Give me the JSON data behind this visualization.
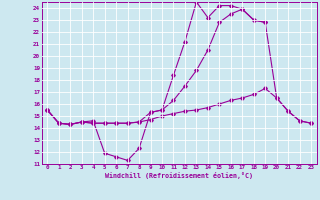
{
  "xlabel": "Windchill (Refroidissement éolien,°C)",
  "bg_color": "#cde8f0",
  "line_color": "#990099",
  "xlim": [
    -0.5,
    23.5
  ],
  "ylim": [
    11,
    24.5
  ],
  "yticks": [
    11,
    12,
    13,
    14,
    15,
    16,
    17,
    18,
    19,
    20,
    21,
    22,
    23,
    24
  ],
  "xticks": [
    0,
    1,
    2,
    3,
    4,
    5,
    6,
    7,
    8,
    9,
    10,
    11,
    12,
    13,
    14,
    15,
    16,
    17,
    18,
    19,
    20,
    21,
    22,
    23
  ],
  "series1_x": [
    0,
    1,
    2,
    3,
    4,
    5,
    6,
    7,
    8,
    9,
    10,
    11,
    12,
    13,
    14,
    15,
    16,
    17,
    18,
    19
  ],
  "series1_y": [
    15.5,
    14.4,
    14.3,
    14.5,
    14.6,
    11.9,
    11.6,
    11.3,
    12.3,
    15.3,
    15.5,
    18.4,
    21.2,
    24.5,
    23.2,
    24.2,
    24.2,
    23.9,
    23.0,
    22.8
  ],
  "series2_x": [
    0,
    1,
    2,
    3,
    4,
    5,
    6,
    7,
    8,
    9,
    10,
    11,
    12,
    13,
    14,
    15,
    16,
    17,
    18,
    19,
    20,
    21,
    22,
    23
  ],
  "series2_y": [
    15.5,
    14.4,
    14.3,
    14.5,
    14.4,
    14.4,
    14.4,
    14.4,
    14.5,
    14.7,
    15.0,
    15.2,
    15.4,
    15.5,
    15.7,
    16.0,
    16.3,
    16.5,
    16.8,
    17.3,
    16.5,
    15.4,
    14.6,
    14.4
  ],
  "series3_x": [
    0,
    1,
    2,
    3,
    4,
    5,
    6,
    7,
    8,
    9,
    10,
    11,
    12,
    13,
    14,
    15,
    16,
    17,
    18,
    19,
    20,
    21,
    22,
    23
  ],
  "series3_y": [
    15.5,
    14.4,
    14.3,
    14.5,
    14.4,
    14.4,
    14.4,
    14.4,
    14.5,
    15.3,
    15.5,
    16.3,
    17.5,
    18.8,
    20.5,
    22.8,
    23.5,
    23.9,
    23.0,
    22.8,
    16.5,
    15.4,
    14.6,
    14.4
  ]
}
